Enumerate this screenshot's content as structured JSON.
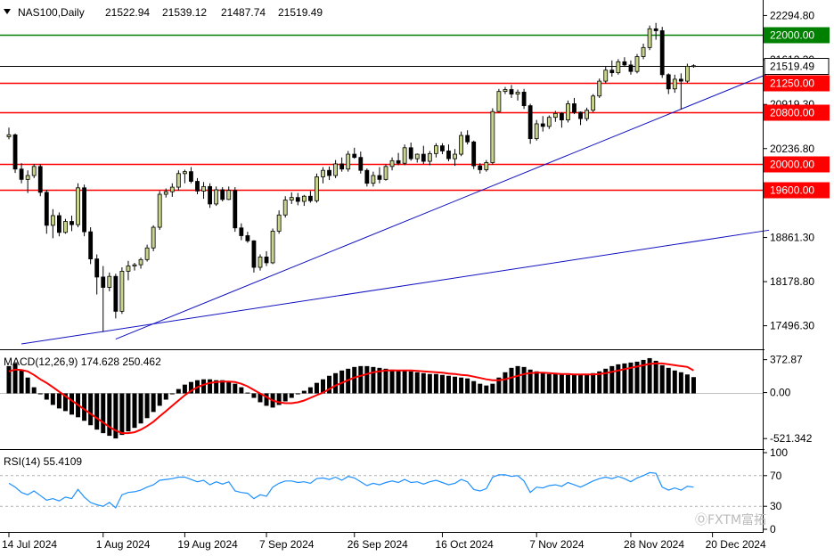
{
  "header": {
    "symbol": "NAS100,Daily",
    "open": "21522.94",
    "high": "21539.12",
    "low": "21487.74",
    "close": "21519.49",
    "menu_icon": "triangle-down-icon"
  },
  "price_axis": {
    "ticks": [
      "22294.80",
      "21612.30",
      "20919.30",
      "20236.80",
      "18861.30",
      "18178.80",
      "17496.30"
    ],
    "current_price_label": "21519.49",
    "last_close": 21519.49,
    "ylim": [
      17160,
      22480
    ]
  },
  "levels": [
    {
      "value": 22000,
      "label": "22000.00",
      "color": "#008000"
    },
    {
      "value": 21250,
      "label": "21250.00",
      "color": "#ff0000"
    },
    {
      "value": 20800,
      "label": "20800.00",
      "color": "#ff0000"
    },
    {
      "value": 20000,
      "label": "20000.00",
      "color": "#ff0000"
    },
    {
      "value": 19600,
      "label": "19600.00",
      "color": "#ff0000"
    }
  ],
  "trendlines": [
    {
      "from": {
        "i": 2,
        "v": 17215
      },
      "to": {
        "i": 121,
        "v": 18975
      },
      "color": "#1010c0"
    },
    {
      "from": {
        "i": 17,
        "v": 17290
      },
      "to": {
        "i": 121,
        "v": 21400
      },
      "color": "#1010c0"
    }
  ],
  "macd": {
    "label": "MACD(12,26,9) 174.628 250.462",
    "ticks": [
      "372.87",
      "0.00",
      "-521.342"
    ],
    "ylim": [
      -600,
      450
    ],
    "signal_color": "#ff0000"
  },
  "rsi": {
    "label": "RSI(14) 55.4109",
    "ticks": [
      "100",
      "70",
      "30",
      "0"
    ],
    "levels": [
      70,
      30
    ],
    "line_color": "#1e90ff",
    "ylim": [
      0,
      100
    ]
  },
  "x_axis": {
    "labels": [
      {
        "i": 0,
        "text": "14 Jul 2024"
      },
      {
        "i": 15,
        "text": "1 Aug 2024"
      },
      {
        "i": 28,
        "text": "19 Aug 2024"
      },
      {
        "i": 41,
        "text": "7 Sep 2024"
      },
      {
        "i": 55,
        "text": "26 Sep 2024"
      },
      {
        "i": 69,
        "text": "16 Oct 2024"
      },
      {
        "i": 84,
        "text": "7 Nov 2024"
      },
      {
        "i": 99,
        "text": "28 Nov 2024"
      },
      {
        "i": 112,
        "text": "20 Dec 2024"
      }
    ]
  },
  "watermark": "ⓄFXTM富拓",
  "colors": {
    "bull": "#c8d48c",
    "bear": "#000000",
    "wick": "#000000",
    "grid": "#c0c0c0",
    "macd_hist": "#000000"
  },
  "chart_data": {
    "type": "candlestick",
    "title": "NAS100,Daily",
    "candles": [
      [
        20420,
        20560,
        20380,
        20450
      ],
      [
        20450,
        20470,
        19860,
        19920
      ],
      [
        19920,
        20010,
        19700,
        19760
      ],
      [
        19760,
        19900,
        19550,
        19820
      ],
      [
        19820,
        20000,
        19780,
        19960
      ],
      [
        19960,
        20000,
        19500,
        19560
      ],
      [
        19560,
        19600,
        18920,
        19050
      ],
      [
        19050,
        19300,
        18850,
        19200
      ],
      [
        19200,
        19250,
        18880,
        18940
      ],
      [
        18940,
        19150,
        18920,
        19110
      ],
      [
        19110,
        19200,
        18960,
        19060
      ],
      [
        19060,
        19700,
        19020,
        19630
      ],
      [
        19630,
        19680,
        18880,
        18950
      ],
      [
        18950,
        19020,
        18450,
        18530
      ],
      [
        18530,
        18600,
        17980,
        18250
      ],
      [
        18250,
        18420,
        17400,
        18090
      ],
      [
        18090,
        18320,
        18030,
        18260
      ],
      [
        18260,
        18300,
        17610,
        17720
      ],
      [
        17720,
        18400,
        17680,
        18340
      ],
      [
        18340,
        18500,
        18200,
        18420
      ],
      [
        18420,
        18470,
        18350,
        18440
      ],
      [
        18440,
        18550,
        18380,
        18520
      ],
      [
        18520,
        18750,
        18490,
        18700
      ],
      [
        18700,
        19050,
        18650,
        19020
      ],
      [
        19020,
        19580,
        18980,
        19530
      ],
      [
        19530,
        19620,
        19480,
        19570
      ],
      [
        19570,
        19700,
        19490,
        19640
      ],
      [
        19640,
        19900,
        19590,
        19850
      ],
      [
        19850,
        19910,
        19700,
        19880
      ],
      [
        19880,
        19950,
        19700,
        19730
      ],
      [
        19730,
        19780,
        19530,
        19580
      ],
      [
        19580,
        19720,
        19460,
        19650
      ],
      [
        19650,
        19700,
        19320,
        19380
      ],
      [
        19380,
        19650,
        19350,
        19600
      ],
      [
        19600,
        19640,
        19420,
        19450
      ],
      [
        19450,
        19650,
        19440,
        19590
      ],
      [
        19590,
        19640,
        18950,
        19010
      ],
      [
        19010,
        19080,
        18820,
        18890
      ],
      [
        18890,
        18950,
        18780,
        18810
      ],
      [
        18810,
        18820,
        18320,
        18400
      ],
      [
        18400,
        18600,
        18350,
        18560
      ],
      [
        18560,
        18650,
        18420,
        18470
      ],
      [
        18470,
        19000,
        18450,
        18960
      ],
      [
        18960,
        19280,
        18920,
        19210
      ],
      [
        19210,
        19500,
        19170,
        19440
      ],
      [
        19440,
        19560,
        19380,
        19480
      ],
      [
        19480,
        19550,
        19360,
        19420
      ],
      [
        19420,
        19520,
        19350,
        19500
      ],
      [
        19500,
        19580,
        19400,
        19430
      ],
      [
        19430,
        19850,
        19400,
        19800
      ],
      [
        19800,
        19950,
        19700,
        19900
      ],
      [
        19900,
        19960,
        19750,
        19820
      ],
      [
        19820,
        20060,
        19780,
        20000
      ],
      [
        20000,
        20100,
        19880,
        19920
      ],
      [
        19920,
        20200,
        19880,
        20150
      ],
      [
        20150,
        20250,
        20080,
        20100
      ],
      [
        20100,
        20190,
        19850,
        19900
      ],
      [
        19900,
        19930,
        19650,
        19700
      ],
      [
        19700,
        19880,
        19650,
        19820
      ],
      [
        19820,
        19950,
        19700,
        19760
      ],
      [
        19760,
        19990,
        19740,
        19960
      ],
      [
        19960,
        20100,
        19900,
        20050
      ],
      [
        20050,
        20170,
        19980,
        20010
      ],
      [
        20010,
        20300,
        19980,
        20250
      ],
      [
        20250,
        20330,
        20050,
        20080
      ],
      [
        20080,
        20160,
        20020,
        20150
      ],
      [
        20150,
        20280,
        20000,
        20040
      ],
      [
        20040,
        20200,
        19980,
        20160
      ],
      [
        20160,
        20320,
        20100,
        20280
      ],
      [
        20280,
        20320,
        20150,
        20200
      ],
      [
        20200,
        20300,
        20040,
        20080
      ],
      [
        20080,
        20230,
        19970,
        20150
      ],
      [
        20150,
        20500,
        20120,
        20440
      ],
      [
        20440,
        20520,
        20300,
        20340
      ],
      [
        20340,
        20360,
        19920,
        19970
      ],
      [
        19970,
        20010,
        19850,
        19910
      ],
      [
        19910,
        20060,
        19880,
        20020
      ],
      [
        20020,
        20860,
        19990,
        20810
      ],
      [
        20810,
        21160,
        20790,
        21120
      ],
      [
        21120,
        21190,
        21080,
        21150
      ],
      [
        21150,
        21220,
        21020,
        21080
      ],
      [
        21080,
        21150,
        20980,
        21110
      ],
      [
        21110,
        21160,
        20850,
        20900
      ],
      [
        20900,
        20930,
        20310,
        20390
      ],
      [
        20390,
        20680,
        20360,
        20620
      ],
      [
        20620,
        20740,
        20500,
        20580
      ],
      [
        20580,
        20750,
        20540,
        20720
      ],
      [
        20720,
        20820,
        20650,
        20780
      ],
      [
        20780,
        20800,
        20560,
        20680
      ],
      [
        20680,
        20980,
        20640,
        20930
      ],
      [
        20930,
        21020,
        20770,
        20800
      ],
      [
        20800,
        20810,
        20600,
        20700
      ],
      [
        20700,
        20870,
        20660,
        20830
      ],
      [
        20830,
        21080,
        20800,
        21050
      ],
      [
        21050,
        21320,
        21020,
        21280
      ],
      [
        21280,
        21500,
        21240,
        21450
      ],
      [
        21450,
        21600,
        21350,
        21410
      ],
      [
        21410,
        21620,
        21380,
        21580
      ],
      [
        21580,
        21650,
        21500,
        21530
      ],
      [
        21530,
        21600,
        21380,
        21430
      ],
      [
        21430,
        21700,
        21400,
        21660
      ],
      [
        21660,
        21860,
        21620,
        21800
      ],
      [
        21800,
        22140,
        21760,
        22090
      ],
      [
        22090,
        22180,
        21920,
        22060
      ],
      [
        22060,
        22120,
        21330,
        21380
      ],
      [
        21380,
        21400,
        21080,
        21160
      ],
      [
        21160,
        21380,
        21100,
        21310
      ],
      [
        21310,
        21400,
        20840,
        21280
      ],
      [
        21280,
        21550,
        21250,
        21510
      ],
      [
        21510,
        21540,
        21488,
        21519
      ]
    ],
    "macd": [
      [
        300,
        240
      ],
      [
        330,
        260
      ],
      [
        250,
        255
      ],
      [
        170,
        240
      ],
      [
        60,
        200
      ],
      [
        -20,
        150
      ],
      [
        -80,
        110
      ],
      [
        -140,
        60
      ],
      [
        -180,
        10
      ],
      [
        -210,
        -40
      ],
      [
        -250,
        -90
      ],
      [
        -280,
        -140
      ],
      [
        -320,
        -190
      ],
      [
        -370,
        -240
      ],
      [
        -420,
        -290
      ],
      [
        -460,
        -340
      ],
      [
        -490,
        -390
      ],
      [
        -520,
        -430
      ],
      [
        -480,
        -460
      ],
      [
        -440,
        -460
      ],
      [
        -400,
        -450
      ],
      [
        -350,
        -420
      ],
      [
        -290,
        -380
      ],
      [
        -220,
        -330
      ],
      [
        -150,
        -270
      ],
      [
        -80,
        -210
      ],
      [
        -20,
        -150
      ],
      [
        40,
        -90
      ],
      [
        90,
        -30
      ],
      [
        120,
        20
      ],
      [
        140,
        60
      ],
      [
        150,
        90
      ],
      [
        150,
        110
      ],
      [
        140,
        120
      ],
      [
        140,
        125
      ],
      [
        130,
        125
      ],
      [
        100,
        120
      ],
      [
        60,
        100
      ],
      [
        0,
        70
      ],
      [
        -60,
        30
      ],
      [
        -110,
        -10
      ],
      [
        -150,
        -50
      ],
      [
        -170,
        -90
      ],
      [
        -140,
        -110
      ],
      [
        -100,
        -120
      ],
      [
        -60,
        -120
      ],
      [
        -20,
        -110
      ],
      [
        20,
        -90
      ],
      [
        60,
        -60
      ],
      [
        110,
        -30
      ],
      [
        150,
        0
      ],
      [
        190,
        40
      ],
      [
        220,
        80
      ],
      [
        250,
        110
      ],
      [
        270,
        140
      ],
      [
        290,
        170
      ],
      [
        300,
        190
      ],
      [
        300,
        210
      ],
      [
        290,
        230
      ],
      [
        280,
        240
      ],
      [
        270,
        250
      ],
      [
        260,
        250
      ],
      [
        250,
        250
      ],
      [
        250,
        250
      ],
      [
        240,
        250
      ],
      [
        230,
        245
      ],
      [
        220,
        240
      ],
      [
        210,
        235
      ],
      [
        210,
        230
      ],
      [
        200,
        225
      ],
      [
        190,
        215
      ],
      [
        180,
        210
      ],
      [
        170,
        200
      ],
      [
        160,
        195
      ],
      [
        130,
        180
      ],
      [
        100,
        165
      ],
      [
        80,
        150
      ],
      [
        100,
        140
      ],
      [
        170,
        140
      ],
      [
        230,
        150
      ],
      [
        280,
        170
      ],
      [
        300,
        190
      ],
      [
        290,
        210
      ],
      [
        260,
        220
      ],
      [
        240,
        225
      ],
      [
        220,
        225
      ],
      [
        210,
        220
      ],
      [
        210,
        215
      ],
      [
        210,
        210
      ],
      [
        200,
        210
      ],
      [
        200,
        205
      ],
      [
        200,
        205
      ],
      [
        210,
        205
      ],
      [
        220,
        205
      ],
      [
        240,
        210
      ],
      [
        270,
        220
      ],
      [
        300,
        235
      ],
      [
        320,
        250
      ],
      [
        330,
        265
      ],
      [
        340,
        280
      ],
      [
        350,
        295
      ],
      [
        370,
        310
      ],
      [
        390,
        325
      ],
      [
        360,
        330
      ],
      [
        310,
        330
      ],
      [
        280,
        320
      ],
      [
        250,
        310
      ],
      [
        230,
        300
      ],
      [
        205,
        290
      ],
      [
        175,
        250
      ]
    ],
    "rsi": [
      [
        60
      ],
      [
        55
      ],
      [
        48
      ],
      [
        45
      ],
      [
        50
      ],
      [
        44
      ],
      [
        38
      ],
      [
        40
      ],
      [
        37
      ],
      [
        42
      ],
      [
        40
      ],
      [
        52
      ],
      [
        42
      ],
      [
        35
      ],
      [
        32
      ],
      [
        30
      ],
      [
        35
      ],
      [
        28
      ],
      [
        45
      ],
      [
        48
      ],
      [
        49
      ],
      [
        51
      ],
      [
        55
      ],
      [
        58
      ],
      [
        64
      ],
      [
        65
      ],
      [
        66
      ],
      [
        68
      ],
      [
        68
      ],
      [
        65
      ],
      [
        62
      ],
      [
        64
      ],
      [
        58
      ],
      [
        62
      ],
      [
        59
      ],
      [
        62
      ],
      [
        50
      ],
      [
        48
      ],
      [
        47
      ],
      [
        40
      ],
      [
        45
      ],
      [
        43
      ],
      [
        55
      ],
      [
        60
      ],
      [
        63
      ],
      [
        63
      ],
      [
        61
      ],
      [
        62
      ],
      [
        60
      ],
      [
        66
      ],
      [
        67
      ],
      [
        65
      ],
      [
        68
      ],
      [
        64
      ],
      [
        69
      ],
      [
        67
      ],
      [
        62
      ],
      [
        57
      ],
      [
        60
      ],
      [
        58
      ],
      [
        61
      ],
      [
        63
      ],
      [
        61
      ],
      [
        65
      ],
      [
        61
      ],
      [
        62
      ],
      [
        59
      ],
      [
        62
      ],
      [
        64
      ],
      [
        61
      ],
      [
        58
      ],
      [
        60
      ],
      [
        65
      ],
      [
        62
      ],
      [
        52
      ],
      [
        50
      ],
      [
        53
      ],
      [
        68
      ],
      [
        71
      ],
      [
        71
      ],
      [
        69
      ],
      [
        70
      ],
      [
        63
      ],
      [
        48
      ],
      [
        55
      ],
      [
        54
      ],
      [
        57
      ],
      [
        58
      ],
      [
        56
      ],
      [
        61
      ],
      [
        58
      ],
      [
        55
      ],
      [
        59
      ],
      [
        63
      ],
      [
        66
      ],
      [
        68
      ],
      [
        66
      ],
      [
        69
      ],
      [
        66
      ],
      [
        62
      ],
      [
        67
      ],
      [
        70
      ],
      [
        74
      ],
      [
        73
      ],
      [
        55
      ],
      [
        51
      ],
      [
        54
      ],
      [
        51
      ],
      [
        56
      ],
      [
        55
      ]
    ]
  }
}
